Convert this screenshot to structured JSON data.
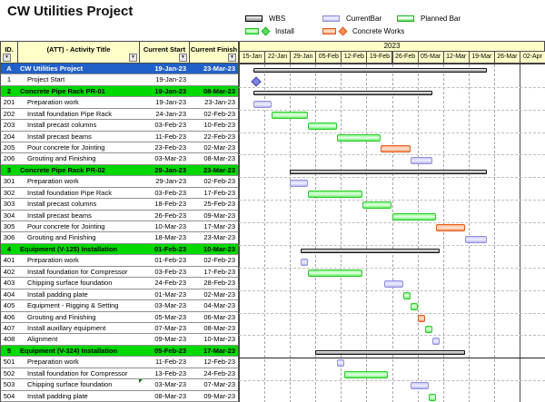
{
  "title": "CW Utilities Project",
  "icons": {
    "filter_dropdown": "▼"
  },
  "colors": {
    "header_yellow": "#ffffc8",
    "project_row_blue": "#2160c8",
    "section_row_green": "#00d800",
    "wbs_bar": "#8a8a8a",
    "current_bar": "#ccccff",
    "install_bar": "#66ee66",
    "planned_bar": "#4fd44f",
    "concrete_bar": "#ff9563"
  },
  "legend": {
    "items": [
      {
        "label": "WBS",
        "type": "wbs"
      },
      {
        "label": "CurrentBar",
        "type": "current"
      },
      {
        "label": "Planned Bar",
        "type": "planned"
      },
      {
        "label": "Install",
        "type": "install"
      },
      {
        "label": "Concrete Works",
        "type": "concrete"
      }
    ]
  },
  "table": {
    "headers": [
      "ID.",
      "(ATT) - Activity Title",
      "Current Start",
      "Current Finish"
    ]
  },
  "chart_data": {
    "type": "gantt",
    "title": "CW Utilities Project",
    "year": "2023",
    "weeks": [
      "15-Jan",
      "22-Jan",
      "29-Jan",
      "05-Feb",
      "12-Feb",
      "19-Feb",
      "26-Feb",
      "05-Mar",
      "12-Mar",
      "19-Mar",
      "26-Mar",
      "02-Apr"
    ],
    "tasks": [
      {
        "id": "A",
        "title": "CW Utilities Project",
        "start": "19-Jan-23",
        "finish": "23-Mar-23",
        "row_type": "project",
        "bar": {
          "kind": "wbs",
          "d0": 4,
          "d1": 67
        }
      },
      {
        "id": "1",
        "title": "Project Start",
        "start": "19-Jan-23",
        "finish": "",
        "row_type": "task",
        "bar": {
          "kind": "milestone",
          "d0": 4,
          "d1": 4
        }
      },
      {
        "id": "2",
        "title": "Concrete Pipe Rack PR-01",
        "start": "19-Jan-23",
        "finish": "08-Mar-23",
        "row_type": "section",
        "bar": {
          "kind": "wbs",
          "d0": 4,
          "d1": 52
        }
      },
      {
        "id": "201",
        "title": "Preparation work",
        "start": "19-Jan-23",
        "finish": "23-Jan-23",
        "row_type": "task",
        "bar": {
          "kind": "current",
          "d0": 4,
          "d1": 8
        }
      },
      {
        "id": "202",
        "title": "Install foundation Pipe Rack",
        "start": "24-Jan-23",
        "finish": "02-Feb-23",
        "row_type": "task",
        "bar": {
          "kind": "install",
          "d0": 9,
          "d1": 18
        }
      },
      {
        "id": "203",
        "title": "Install precast columns",
        "start": "03-Feb-23",
        "finish": "10-Feb-23",
        "row_type": "task",
        "bar": {
          "kind": "install",
          "d0": 19,
          "d1": 26
        }
      },
      {
        "id": "204",
        "title": "Install precast beams",
        "start": "11-Feb-23",
        "finish": "22-Feb-23",
        "row_type": "task",
        "bar": {
          "kind": "install",
          "d0": 27,
          "d1": 38
        }
      },
      {
        "id": "205",
        "title": "Pour concrete for Jointing",
        "start": "23-Feb-23",
        "finish": "02-Mar-23",
        "row_type": "task",
        "bar": {
          "kind": "concrete",
          "d0": 39,
          "d1": 46
        }
      },
      {
        "id": "206",
        "title": "Grouting and Finishing",
        "start": "03-Mar-23",
        "finish": "08-Mar-23",
        "row_type": "task",
        "bar": {
          "kind": "current",
          "d0": 47,
          "d1": 52
        }
      },
      {
        "id": "3",
        "title": "Concrete Pipe Rack PR-02",
        "start": "29-Jan-23",
        "finish": "23-Mar-23",
        "row_type": "section",
        "bar": {
          "kind": "wbs",
          "d0": 14,
          "d1": 67
        }
      },
      {
        "id": "301",
        "title": "Preparation work",
        "start": "29-Jan-23",
        "finish": "02-Feb-23",
        "row_type": "task",
        "bar": {
          "kind": "current",
          "d0": 14,
          "d1": 18
        }
      },
      {
        "id": "302",
        "title": "Install foundation Pipe Rack",
        "start": "03-Feb-23",
        "finish": "17-Feb-23",
        "row_type": "task",
        "bar": {
          "kind": "install",
          "d0": 19,
          "d1": 33
        }
      },
      {
        "id": "303",
        "title": "Install precast columns",
        "start": "18-Feb-23",
        "finish": "25-Feb-23",
        "row_type": "task",
        "bar": {
          "kind": "install",
          "d0": 34,
          "d1": 41
        }
      },
      {
        "id": "304",
        "title": "Install precast beams",
        "start": "26-Feb-23",
        "finish": "09-Mar-23",
        "row_type": "task",
        "bar": {
          "kind": "install",
          "d0": 42,
          "d1": 53
        }
      },
      {
        "id": "305",
        "title": "Pour concrete for Jointing",
        "start": "10-Mar-23",
        "finish": "17-Mar-23",
        "row_type": "task",
        "bar": {
          "kind": "concrete",
          "d0": 54,
          "d1": 61
        }
      },
      {
        "id": "306",
        "title": "Grouting and Finishing",
        "start": "18-Mar-23",
        "finish": "23-Mar-23",
        "row_type": "task",
        "bar": {
          "kind": "current",
          "d0": 62,
          "d1": 67
        }
      },
      {
        "id": "4",
        "title": "Equipment (V-125) Installation",
        "start": "01-Feb-23",
        "finish": "10-Mar-23",
        "row_type": "section",
        "bar": {
          "kind": "wbs",
          "d0": 17,
          "d1": 54
        }
      },
      {
        "id": "401",
        "title": "Preparation work",
        "start": "01-Feb-23",
        "finish": "02-Feb-23",
        "row_type": "task",
        "bar": {
          "kind": "current",
          "d0": 17,
          "d1": 18
        }
      },
      {
        "id": "402",
        "title": "Install foundation for Compressor",
        "start": "03-Feb-23",
        "finish": "17-Feb-23",
        "row_type": "task",
        "bar": {
          "kind": "install",
          "d0": 19,
          "d1": 33
        }
      },
      {
        "id": "403",
        "title": "Chipping surface foundation",
        "start": "24-Feb-23",
        "finish": "28-Feb-23",
        "row_type": "task",
        "bar": {
          "kind": "current",
          "d0": 40,
          "d1": 44
        }
      },
      {
        "id": "404",
        "title": "Install padding plate",
        "start": "01-Mar-23",
        "finish": "02-Mar-23",
        "row_type": "task",
        "bar": {
          "kind": "install",
          "d0": 45,
          "d1": 46
        }
      },
      {
        "id": "405",
        "title": "Equipment - Rigging & Setting",
        "start": "03-Mar-23",
        "finish": "04-Mar-23",
        "row_type": "task",
        "bar": {
          "kind": "install",
          "d0": 47,
          "d1": 48
        }
      },
      {
        "id": "406",
        "title": "Grouting and Finishing",
        "start": "05-Mar-23",
        "finish": "06-Mar-23",
        "row_type": "task",
        "bar": {
          "kind": "concrete",
          "d0": 49,
          "d1": 50
        }
      },
      {
        "id": "407",
        "title": "Install auxillary equipment",
        "start": "07-Mar-23",
        "finish": "08-Mar-23",
        "row_type": "task",
        "bar": {
          "kind": "install",
          "d0": 51,
          "d1": 52
        }
      },
      {
        "id": "408",
        "title": "Alignment",
        "start": "09-Mar-23",
        "finish": "10-Mar-23",
        "row_type": "task",
        "bar": {
          "kind": "current",
          "d0": 53,
          "d1": 54
        }
      },
      {
        "id": "5",
        "title": "Equipment (V-324) Installation",
        "start": "05-Feb-23",
        "finish": "17-Mar-23",
        "row_type": "section",
        "bar": {
          "kind": "wbs",
          "d0": 21,
          "d1": 61
        }
      },
      {
        "id": "501",
        "title": "Preparation work",
        "start": "11-Feb-23",
        "finish": "12-Feb-23",
        "row_type": "task",
        "bar": {
          "kind": "current",
          "d0": 27,
          "d1": 28
        }
      },
      {
        "id": "502",
        "title": "Install foundation for Compressor",
        "start": "13-Feb-23",
        "finish": "24-Feb-23",
        "row_type": "task",
        "bar": {
          "kind": "install",
          "d0": 29,
          "d1": 40
        }
      },
      {
        "id": "503",
        "title": "Chipping surface foundation",
        "start": "03-Mar-23",
        "finish": "07-Mar-23",
        "row_type": "task",
        "start_note": true,
        "bar": {
          "kind": "current",
          "d0": 47,
          "d1": 51
        }
      },
      {
        "id": "504",
        "title": "Install padding plate",
        "start": "08-Mar-23",
        "finish": "09-Mar-23",
        "row_type": "task",
        "bar": {
          "kind": "install",
          "d0": 52,
          "d1": 53
        }
      }
    ]
  }
}
